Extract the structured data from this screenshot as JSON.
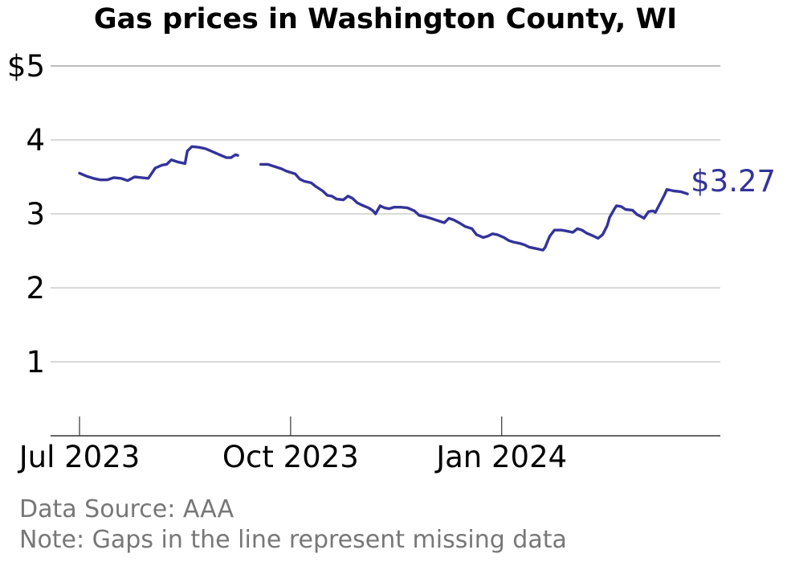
{
  "chart_data": {
    "type": "line",
    "title": "Gas prices in Washington County, WI",
    "ylim": [
      0,
      5
    ],
    "yticks": [
      {
        "value": 1,
        "label": "1"
      },
      {
        "value": 2,
        "label": "2"
      },
      {
        "value": 3,
        "label": "3"
      },
      {
        "value": 4,
        "label": "4"
      },
      {
        "value": 5,
        "label": "$5"
      }
    ],
    "xlim": [
      "2023-07-01",
      "2024-03-23"
    ],
    "xticks": [
      {
        "date": "2023-07-01",
        "label": "Jul 2023"
      },
      {
        "date": "2023-10-01",
        "label": "Oct 2023"
      },
      {
        "date": "2024-01-01",
        "label": "Jan 2024"
      }
    ],
    "grid": true,
    "last_value_label": "$3.27",
    "series": [
      {
        "color": "#33339a",
        "segments": [
          [
            [
              "2023-07-01",
              3.55
            ],
            [
              "2023-07-04",
              3.51
            ],
            [
              "2023-07-07",
              3.48
            ],
            [
              "2023-07-10",
              3.46
            ],
            [
              "2023-07-13",
              3.46
            ],
            [
              "2023-07-16",
              3.49
            ],
            [
              "2023-07-19",
              3.48
            ],
            [
              "2023-07-22",
              3.45
            ],
            [
              "2023-07-25",
              3.5
            ],
            [
              "2023-07-28",
              3.49
            ],
            [
              "2023-07-31",
              3.48
            ],
            [
              "2023-08-03",
              3.62
            ],
            [
              "2023-08-06",
              3.66
            ],
            [
              "2023-08-08",
              3.67
            ],
            [
              "2023-08-10",
              3.73
            ],
            [
              "2023-08-13",
              3.7
            ],
            [
              "2023-08-16",
              3.68
            ],
            [
              "2023-08-17",
              3.85
            ],
            [
              "2023-08-19",
              3.91
            ],
            [
              "2023-08-22",
              3.9
            ],
            [
              "2023-08-25",
              3.88
            ],
            [
              "2023-08-28",
              3.84
            ],
            [
              "2023-08-31",
              3.8
            ],
            [
              "2023-09-03",
              3.76
            ],
            [
              "2023-09-05",
              3.76
            ],
            [
              "2023-09-07",
              3.8
            ],
            [
              "2023-09-08",
              3.79
            ]
          ],
          [
            [
              "2023-09-18",
              3.67
            ],
            [
              "2023-09-21",
              3.67
            ],
            [
              "2023-09-24",
              3.64
            ],
            [
              "2023-09-27",
              3.61
            ],
            [
              "2023-09-29",
              3.58
            ],
            [
              "2023-10-01",
              3.56
            ],
            [
              "2023-10-03",
              3.54
            ],
            [
              "2023-10-05",
              3.47
            ],
            [
              "2023-10-07",
              3.44
            ],
            [
              "2023-10-10",
              3.42
            ],
            [
              "2023-10-12",
              3.37
            ],
            [
              "2023-10-15",
              3.31
            ],
            [
              "2023-10-17",
              3.25
            ],
            [
              "2023-10-19",
              3.24
            ],
            [
              "2023-10-21",
              3.2
            ],
            [
              "2023-10-24",
              3.19
            ],
            [
              "2023-10-26",
              3.24
            ],
            [
              "2023-10-28",
              3.21
            ],
            [
              "2023-10-30",
              3.15
            ],
            [
              "2023-11-01",
              3.12
            ],
            [
              "2023-11-04",
              3.08
            ],
            [
              "2023-11-06",
              3.04
            ],
            [
              "2023-11-07",
              3.0
            ],
            [
              "2023-11-09",
              3.11
            ],
            [
              "2023-11-11",
              3.08
            ],
            [
              "2023-11-13",
              3.07
            ],
            [
              "2023-11-15",
              3.09
            ],
            [
              "2023-11-18",
              3.09
            ],
            [
              "2023-11-21",
              3.08
            ],
            [
              "2023-11-24",
              3.04
            ],
            [
              "2023-11-26",
              2.98
            ],
            [
              "2023-11-29",
              2.96
            ],
            [
              "2023-12-02",
              2.93
            ],
            [
              "2023-12-05",
              2.9
            ],
            [
              "2023-12-07",
              2.88
            ],
            [
              "2023-12-09",
              2.94
            ],
            [
              "2023-12-11",
              2.92
            ],
            [
              "2023-12-14",
              2.87
            ],
            [
              "2023-12-16",
              2.83
            ],
            [
              "2023-12-19",
              2.8
            ],
            [
              "2023-12-21",
              2.72
            ],
            [
              "2023-12-24",
              2.68
            ],
            [
              "2023-12-26",
              2.7
            ],
            [
              "2023-12-28",
              2.73
            ],
            [
              "2023-12-30",
              2.72
            ],
            [
              "2024-01-02",
              2.68
            ],
            [
              "2024-01-04",
              2.64
            ],
            [
              "2024-01-06",
              2.62
            ],
            [
              "2024-01-09",
              2.6
            ],
            [
              "2024-01-11",
              2.58
            ],
            [
              "2024-01-13",
              2.55
            ],
            [
              "2024-01-16",
              2.53
            ],
            [
              "2024-01-19",
              2.51
            ],
            [
              "2024-01-20",
              2.55
            ],
            [
              "2024-01-21",
              2.63
            ],
            [
              "2024-01-22",
              2.7
            ],
            [
              "2024-01-24",
              2.78
            ],
            [
              "2024-01-27",
              2.78
            ],
            [
              "2024-01-29",
              2.77
            ],
            [
              "2024-02-01",
              2.75
            ],
            [
              "2024-02-03",
              2.8
            ],
            [
              "2024-02-05",
              2.78
            ],
            [
              "2024-02-07",
              2.74
            ],
            [
              "2024-02-10",
              2.7
            ],
            [
              "2024-02-12",
              2.67
            ],
            [
              "2024-02-14",
              2.72
            ],
            [
              "2024-02-16",
              2.84
            ],
            [
              "2024-02-17",
              2.95
            ],
            [
              "2024-02-19",
              3.06
            ],
            [
              "2024-02-20",
              3.11
            ],
            [
              "2024-02-22",
              3.1
            ],
            [
              "2024-02-24",
              3.06
            ],
            [
              "2024-02-27",
              3.05
            ],
            [
              "2024-02-29",
              2.99
            ],
            [
              "2024-03-02",
              2.96
            ],
            [
              "2024-03-03",
              2.94
            ],
            [
              "2024-03-05",
              3.03
            ],
            [
              "2024-03-07",
              3.04
            ],
            [
              "2024-03-08",
              3.02
            ],
            [
              "2024-03-10",
              3.14
            ],
            [
              "2024-03-12",
              3.26
            ],
            [
              "2024-03-13",
              3.33
            ],
            [
              "2024-03-16",
              3.31
            ],
            [
              "2024-03-19",
              3.3
            ],
            [
              "2024-03-21",
              3.28
            ],
            [
              "2024-03-22",
              3.27
            ]
          ]
        ]
      }
    ]
  },
  "footer": {
    "source": "Data Source: AAA",
    "note": "Note: Gaps in the line represent missing data"
  }
}
